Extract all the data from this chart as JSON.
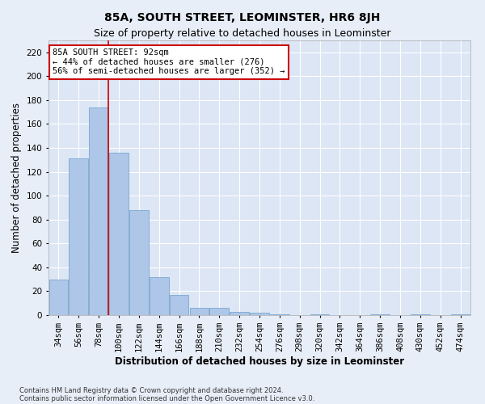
{
  "title": "85A, SOUTH STREET, LEOMINSTER, HR6 8JH",
  "subtitle": "Size of property relative to detached houses in Leominster",
  "xlabel": "Distribution of detached houses by size in Leominster",
  "ylabel": "Number of detached properties",
  "categories": [
    "34sqm",
    "56sqm",
    "78sqm",
    "100sqm",
    "122sqm",
    "144sqm",
    "166sqm",
    "188sqm",
    "210sqm",
    "232sqm",
    "254sqm",
    "276sqm",
    "298sqm",
    "320sqm",
    "342sqm",
    "364sqm",
    "386sqm",
    "408sqm",
    "430sqm",
    "452sqm",
    "474sqm"
  ],
  "values": [
    30,
    131,
    174,
    136,
    88,
    32,
    17,
    6,
    6,
    3,
    2,
    1,
    0,
    1,
    0,
    0,
    1,
    0,
    1,
    0,
    1
  ],
  "bar_color": "#aec6e8",
  "bar_edge_color": "#7aa8d0",
  "ylim": [
    0,
    230
  ],
  "yticks": [
    0,
    20,
    40,
    60,
    80,
    100,
    120,
    140,
    160,
    180,
    200,
    220
  ],
  "property_line_index": 2.475,
  "annotation_title": "85A SOUTH STREET: 92sqm",
  "annotation_line1": "← 44% of detached houses are smaller (276)",
  "annotation_line2": "56% of semi-detached houses are larger (352) →",
  "annotation_box_color": "#ffffff",
  "annotation_box_edge_color": "#cc0000",
  "property_line_color": "#cc0000",
  "footer1": "Contains HM Land Registry data © Crown copyright and database right 2024.",
  "footer2": "Contains public sector information licensed under the Open Government Licence v3.0.",
  "background_color": "#e8eef8",
  "plot_bg_color": "#dce6f5",
  "grid_color": "#ffffff",
  "title_fontsize": 10,
  "subtitle_fontsize": 9,
  "axis_label_fontsize": 8.5,
  "tick_fontsize": 7.5,
  "footer_fontsize": 6
}
